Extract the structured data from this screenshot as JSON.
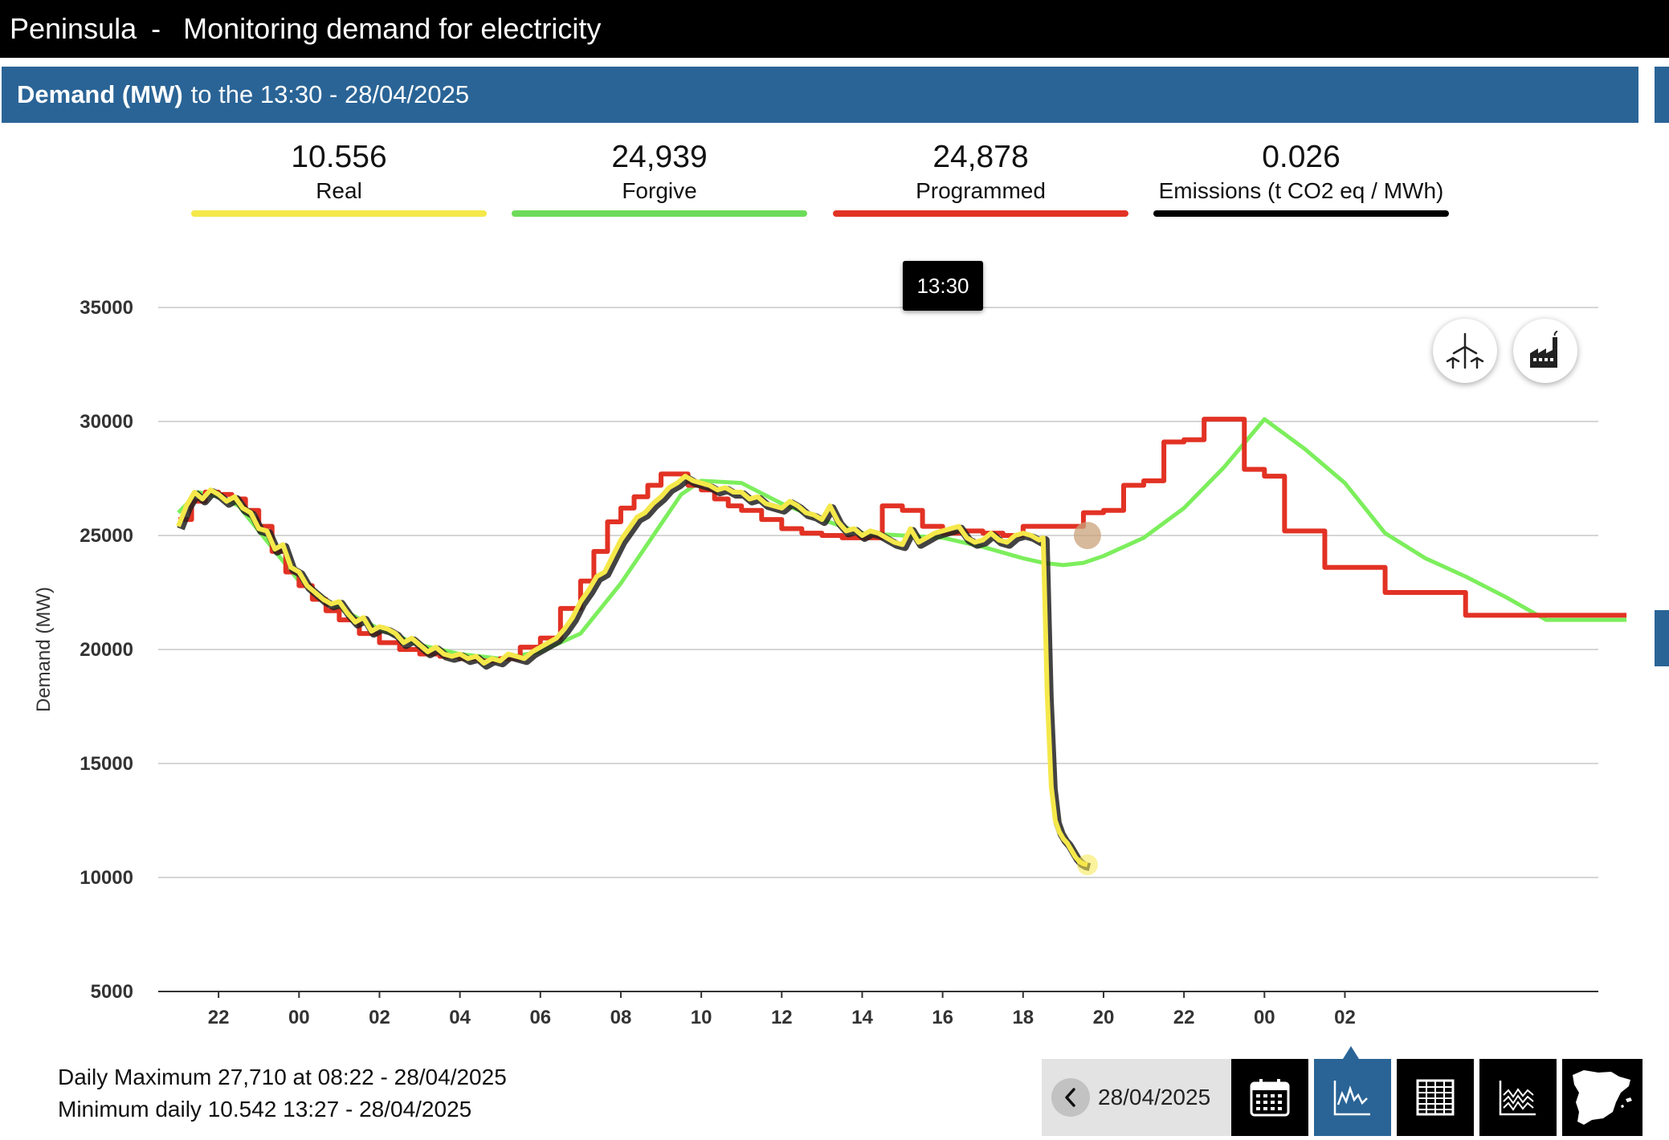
{
  "header": {
    "region": "Peninsula",
    "separator": "-",
    "title": "Monitoring demand for electricity"
  },
  "subheader": {
    "metric": "Demand (MW)",
    "context": "to the 13:30 - 28/04/2025"
  },
  "metrics": [
    {
      "value": "10.556",
      "label": "Real",
      "color": "#f5e84a"
    },
    {
      "value": "24,939",
      "label": "Forgive",
      "color": "#6ddb5a"
    },
    {
      "value": "24,878",
      "label": "Programmed",
      "color": "#e23224"
    },
    {
      "value": "0.026",
      "label": "Emissions (t CO2 eq / MWh)",
      "color": "#000000"
    }
  ],
  "tooltip": {
    "time": "13:30"
  },
  "chart_buttons": [
    {
      "name": "wind-generation-icon"
    },
    {
      "name": "factory-emissions-icon"
    }
  ],
  "stats": {
    "max": "Daily Maximum 27,710 at 08:22 - 28/04/2025",
    "min": "Minimum daily 10.542 13:27 - 28/04/2025"
  },
  "toolbar": {
    "date": "28/04/2025",
    "buttons": [
      "calendar-icon",
      "line-chart-icon",
      "table-icon",
      "area-chart-icon",
      "spain-map-icon"
    ],
    "active": "line-chart-icon"
  },
  "chart_data": {
    "type": "line",
    "ylabel": "Demand (MW)",
    "xlabel": "",
    "ylim": [
      5000,
      35000
    ],
    "yticks": [
      5000,
      10000,
      15000,
      20000,
      25000,
      30000,
      35000
    ],
    "xticks": [
      "22",
      "00",
      "02",
      "04",
      "06",
      "08",
      "10",
      "12",
      "14",
      "16",
      "18",
      "20",
      "22",
      "00",
      "02"
    ],
    "x_unit": "hours from 21:00 on 27/04/2025",
    "grid": true,
    "series": [
      {
        "name": "Forgive",
        "color": "#7cee5c",
        "x": [
          0,
          0.5,
          1,
          1.5,
          2,
          3,
          4,
          5,
          6,
          7,
          8,
          9,
          10,
          11,
          12,
          12.5,
          13,
          14,
          15,
          16,
          17,
          18,
          19,
          20,
          21,
          21.5,
          22,
          22.5,
          23,
          24,
          25,
          26,
          27,
          28,
          29,
          30,
          31,
          32,
          33,
          34,
          35,
          36
        ],
        "values": [
          26000,
          26900,
          26700,
          26300,
          25200,
          23000,
          21800,
          20900,
          20200,
          19800,
          19600,
          19900,
          20700,
          22900,
          25500,
          26800,
          27400,
          27300,
          26400,
          25700,
          25100,
          25000,
          24900,
          24500,
          24000,
          23800,
          23700,
          23800,
          24100,
          24900,
          26200,
          28000,
          30100,
          28800,
          27300,
          25100,
          24000,
          23200,
          22300,
          21300,
          21300,
          21300
        ]
      },
      {
        "name": "Programmed",
        "color": "#e23224",
        "step": true,
        "x": [
          0,
          0.33,
          0.67,
          1,
          1.33,
          1.67,
          2,
          2.33,
          2.67,
          3,
          3.33,
          3.67,
          4,
          4.5,
          5,
          5.5,
          6,
          6.5,
          7,
          7.5,
          8,
          8.5,
          9,
          9.5,
          10,
          10.33,
          10.67,
          11,
          11.33,
          11.67,
          12,
          12.33,
          12.67,
          13,
          13.33,
          13.67,
          14,
          14.5,
          15,
          15.5,
          16,
          16.5,
          17,
          17.5,
          18,
          18.5,
          19,
          19.5,
          20,
          20.5,
          21,
          21.5,
          22,
          22.5,
          23,
          23.5,
          24,
          24.5,
          25,
          25.5,
          26,
          26.5,
          27,
          27.5,
          28,
          28.5,
          29,
          30,
          31,
          32,
          33,
          34,
          35,
          36
        ],
        "values": [
          25700,
          26500,
          26900,
          26800,
          26600,
          26100,
          25400,
          24300,
          23400,
          22800,
          22200,
          21700,
          21300,
          20700,
          20300,
          20000,
          19800,
          19700,
          19600,
          19500,
          19600,
          20100,
          20500,
          21800,
          23000,
          24300,
          25600,
          26200,
          26700,
          27200,
          27700,
          27700,
          27200,
          27000,
          26600,
          26300,
          26100,
          25700,
          25300,
          25100,
          25000,
          24900,
          24900,
          26300,
          26100,
          25400,
          25100,
          25200,
          25100,
          25000,
          25400,
          25400,
          25400,
          26000,
          26100,
          27200,
          27400,
          29100,
          29200,
          30100,
          30100,
          27900,
          27600,
          25200,
          25200,
          23600,
          23600,
          22500,
          22500,
          21500,
          21500,
          21500,
          21500,
          21500
        ]
      },
      {
        "name": "Real",
        "color": "#f5e84a",
        "x": [
          0,
          0.2,
          0.4,
          0.6,
          0.8,
          1,
          1.2,
          1.4,
          1.6,
          1.8,
          2,
          2.2,
          2.4,
          2.6,
          2.8,
          3,
          3.2,
          3.4,
          3.6,
          3.8,
          4,
          4.2,
          4.4,
          4.6,
          4.8,
          5,
          5.2,
          5.4,
          5.6,
          5.8,
          6,
          6.2,
          6.4,
          6.6,
          6.8,
          7,
          7.2,
          7.4,
          7.6,
          7.8,
          8,
          8.2,
          8.4,
          8.6,
          8.8,
          9,
          9.2,
          9.4,
          9.6,
          9.8,
          10,
          10.2,
          10.4,
          10.6,
          10.8,
          11,
          11.2,
          11.4,
          11.6,
          11.8,
          12,
          12.2,
          12.4,
          12.6,
          12.8,
          13,
          13.2,
          13.4,
          13.6,
          13.8,
          14,
          14.2,
          14.4,
          14.6,
          14.8,
          15,
          15.2,
          15.4,
          15.6,
          15.8,
          16,
          16.2,
          16.4,
          16.6,
          16.8,
          17,
          17.2,
          17.4,
          17.6,
          17.8,
          18,
          18.2,
          18.4,
          18.6,
          18.8,
          19,
          19.2,
          19.4,
          19.6,
          19.8,
          20,
          20.2,
          20.4,
          20.6,
          20.8,
          21,
          21.2,
          21.4,
          21.5,
          21.6,
          21.7,
          21.8,
          21.9,
          22,
          22.1,
          22.2,
          22.3,
          22.4,
          22.5,
          22.6
        ],
        "values": [
          25400,
          26300,
          26900,
          26600,
          27000,
          26800,
          26500,
          26700,
          26200,
          26000,
          25300,
          25200,
          24400,
          24600,
          23600,
          23400,
          22800,
          22500,
          22200,
          22000,
          22100,
          21600,
          21200,
          21400,
          20800,
          21000,
          20900,
          20700,
          20300,
          20500,
          20200,
          19900,
          20100,
          19800,
          19700,
          19800,
          19600,
          19700,
          19400,
          19600,
          19500,
          19800,
          19700,
          19600,
          19900,
          20100,
          20300,
          20500,
          20900,
          21400,
          22100,
          22600,
          23200,
          23400,
          24100,
          24800,
          25300,
          25800,
          26000,
          26400,
          26700,
          27100,
          27300,
          27600,
          27400,
          27300,
          27200,
          27000,
          27100,
          26900,
          26900,
          26600,
          26700,
          26400,
          26300,
          26200,
          26500,
          26300,
          26000,
          25900,
          25700,
          26300,
          25600,
          25200,
          25300,
          25000,
          25200,
          25100,
          24900,
          24700,
          24600,
          25300,
          24700,
          24900,
          25100,
          25200,
          25300,
          25400,
          24900,
          24700,
          24800,
          25100,
          24800,
          24700,
          25000,
          25100,
          25000,
          24800,
          24900,
          18000,
          14000,
          12500,
          12000,
          11700,
          11500,
          11200,
          10900,
          10700,
          10600,
          10556
        ]
      }
    ]
  }
}
